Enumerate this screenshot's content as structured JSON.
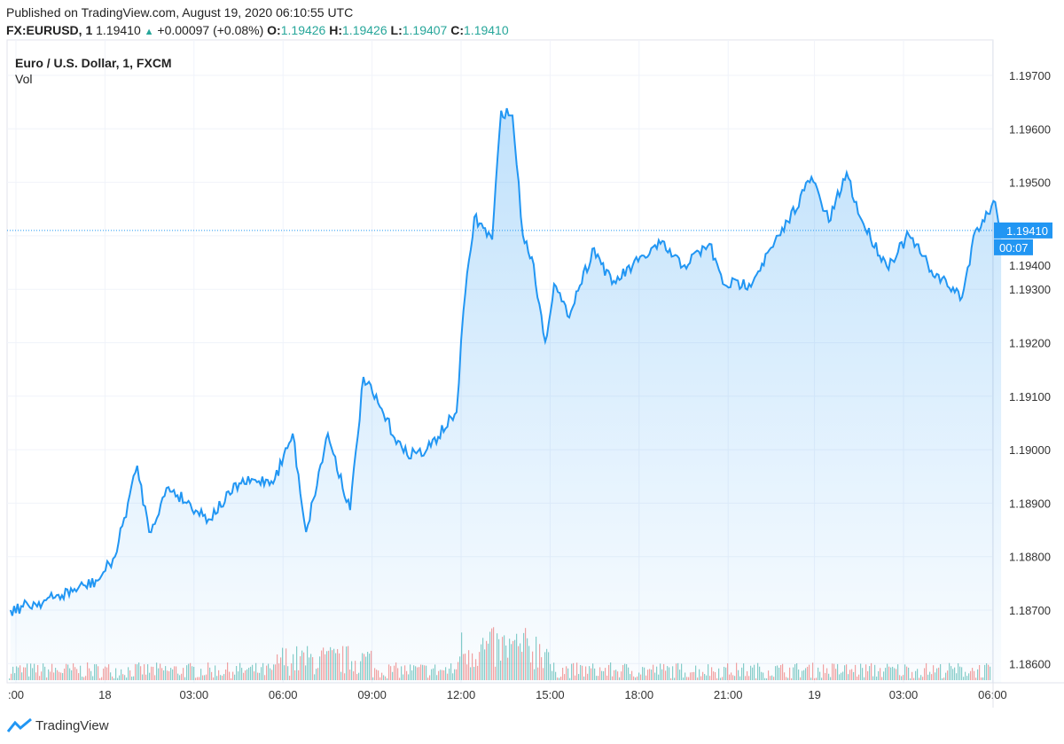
{
  "header": {
    "published": "Published on TradingView.com, August 19, 2020 06:10:55 UTC",
    "symbol": "FX:EURUSD, 1",
    "last": "1.19410",
    "change": "+0.00097 (+0.08%)",
    "o_label": "O:",
    "o": "1.19426",
    "h_label": "H:",
    "h": "1.19426",
    "l_label": "L:",
    "l": "1.19407",
    "c_label": "C:",
    "c": "1.19410"
  },
  "legend": {
    "title": "Euro / U.S. Dollar, 1, FXCM",
    "vol": "Vol"
  },
  "footer": {
    "brand": "TradingView"
  },
  "colors": {
    "line": "#2196f3",
    "up": "#26a69a",
    "down": "#ef5350"
  },
  "chart_data": {
    "type": "area",
    "title": "Euro / U.S. Dollar, 1, FXCM",
    "ylim": [
      1.1855,
      1.1978
    ],
    "y_ticks": [
      "1.19700",
      "1.19600",
      "1.19500",
      "1.19400",
      "1.19300",
      "1.19200",
      "1.19100",
      "1.19000",
      "1.18900",
      "1.18800",
      "1.18700",
      "1.18600"
    ],
    "x_ticks": [
      ":00",
      "18",
      "03:00",
      "06:00",
      "09:00",
      "12:00",
      "15:00",
      "18:00",
      "21:00",
      "19",
      "03:00",
      "06:00"
    ],
    "last_price_label": "1.19410",
    "countdown_label": "00:07",
    "grid": true,
    "series": [
      {
        "points": [
          [
            "2020-08-17T20:49",
            1.187
          ],
          [
            "2020-08-17T22:15",
            1.18722
          ],
          [
            "2020-08-17T23:45",
            1.18755
          ],
          [
            "2020-08-18T00:20",
            1.188
          ],
          [
            "2020-08-18T01:05",
            1.1897
          ],
          [
            "2020-08-18T01:29",
            1.18846
          ],
          [
            "2020-08-18T02:08",
            1.1893
          ],
          [
            "2020-08-18T03:29",
            1.1887
          ],
          [
            "2020-08-18T04:31",
            1.18937
          ],
          [
            "2020-08-18T05:43",
            1.18945
          ],
          [
            "2020-08-18T06:19",
            1.1903
          ],
          [
            "2020-08-18T06:46",
            1.18846
          ],
          [
            "2020-08-18T07:30",
            1.1903
          ],
          [
            "2020-08-18T08:15",
            1.18887
          ],
          [
            "2020-08-18T08:42",
            1.19136
          ],
          [
            "2020-08-18T10:03",
            1.18995
          ],
          [
            "2020-08-18T10:47",
            1.18995
          ],
          [
            "2020-08-18T11:50",
            1.1907
          ],
          [
            "2020-08-18T12:04",
            1.1926
          ],
          [
            "2020-08-18T12:26",
            1.19435
          ],
          [
            "2020-08-18T13:02",
            1.19393
          ],
          [
            "2020-08-18T13:20",
            1.19634
          ],
          [
            "2020-08-18T13:43",
            1.19625
          ],
          [
            "2020-08-18T14:04",
            1.19401
          ],
          [
            "2020-08-18T14:22",
            1.1936
          ],
          [
            "2020-08-18T14:49",
            1.19202
          ],
          [
            "2020-08-18T15:07",
            1.1931
          ],
          [
            "2020-08-18T15:34",
            1.1925
          ],
          [
            "2020-08-18T16:28",
            1.19377
          ],
          [
            "2020-08-18T17:04",
            1.1931
          ],
          [
            "2020-08-18T17:57",
            1.19352
          ],
          [
            "2020-08-18T18:42",
            1.19385
          ],
          [
            "2020-08-18T19:27",
            1.19343
          ],
          [
            "2020-08-18T20:21",
            1.19385
          ],
          [
            "2020-08-18T20:48",
            1.1931
          ],
          [
            "2020-08-18T21:41",
            1.1931
          ],
          [
            "2020-08-18T22:44",
            1.19401
          ],
          [
            "2020-08-18T23:47",
            1.1951
          ],
          [
            "2020-08-19T00:22",
            1.19426
          ],
          [
            "2020-08-19T00:58",
            1.19518
          ],
          [
            "2020-08-19T01:25",
            1.19435
          ],
          [
            "2020-08-19T02:19",
            1.19343
          ],
          [
            "2020-08-19T03:04",
            1.19401
          ],
          [
            "2020-08-19T03:49",
            1.19335
          ],
          [
            "2020-08-19T04:51",
            1.19285
          ],
          [
            "2020-08-19T05:18",
            1.1941
          ],
          [
            "2020-08-19T05:58",
            1.19463
          ],
          [
            "2020-08-19T06:10",
            1.1941
          ]
        ]
      }
    ]
  }
}
